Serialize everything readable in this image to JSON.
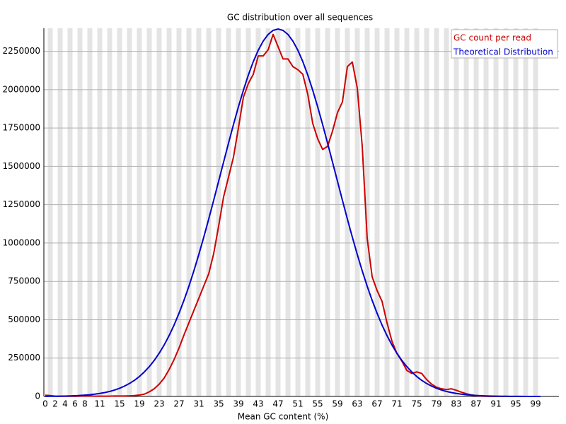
{
  "chart_data": {
    "type": "line",
    "title": "GC distribution over all sequences",
    "x_label": "Mean GC content (%)",
    "categories": [
      "0",
      null,
      "2",
      null,
      "4",
      null,
      "6",
      null,
      "8",
      null,
      null,
      "11",
      null,
      null,
      null,
      "15",
      null,
      null,
      null,
      "19",
      null,
      null,
      null,
      "23",
      null,
      null,
      null,
      "27",
      null,
      null,
      null,
      "31",
      null,
      null,
      null,
      "35",
      null,
      null,
      null,
      "39",
      null,
      null,
      null,
      "43",
      null,
      null,
      null,
      "47",
      null,
      null,
      null,
      "51",
      null,
      null,
      null,
      "55",
      null,
      null,
      null,
      "59",
      null,
      null,
      null,
      "63",
      null,
      null,
      null,
      "67",
      null,
      null,
      null,
      "71",
      null,
      null,
      null,
      "75",
      null,
      null,
      null,
      "79",
      null,
      null,
      null,
      "83",
      null,
      null,
      null,
      "87",
      null,
      null,
      null,
      "91",
      null,
      null,
      null,
      "95",
      null,
      null,
      null,
      "99",
      null
    ],
    "series": [
      {
        "name": "GC count per read",
        "color": "#cc0000",
        "values": [
          8000,
          6000,
          2000,
          1000,
          1000,
          1000,
          1000,
          2000,
          3000,
          3000,
          2000,
          2000,
          2000,
          2000,
          3000,
          3000,
          3000,
          4000,
          6000,
          9000,
          15000,
          30000,
          50000,
          80000,
          120000,
          175000,
          240000,
          315000,
          400000,
          480000,
          560000,
          640000,
          720000,
          800000,
          930000,
          1110000,
          1300000,
          1430000,
          1560000,
          1750000,
          1950000,
          2040000,
          2100000,
          2220000,
          2220000,
          2260000,
          2360000,
          2280000,
          2200000,
          2200000,
          2150000,
          2130000,
          2100000,
          1970000,
          1780000,
          1680000,
          1610000,
          1630000,
          1730000,
          1850000,
          1920000,
          2150000,
          2180000,
          2010000,
          1630000,
          1030000,
          780000,
          690000,
          620000,
          480000,
          360000,
          280000,
          230000,
          170000,
          150000,
          160000,
          150000,
          110000,
          80000,
          60000,
          50000,
          45000,
          50000,
          40000,
          28000,
          18000,
          10000,
          5000,
          2000,
          1000,
          0,
          0,
          0,
          0,
          0,
          0,
          0,
          0,
          0,
          0,
          0
        ]
      },
      {
        "name": "Theoretical Distribution",
        "color": "#0000cc",
        "values": [
          650,
          920,
          1290,
          1800,
          2480,
          3400,
          4640,
          6270,
          8410,
          11200,
          14800,
          19400,
          25300,
          32600,
          41900,
          53300,
          67400,
          84500,
          105200,
          130000,
          159600,
          194300,
          234700,
          281700,
          335300,
          396400,
          465100,
          541700,
          626300,
          718500,
          818400,
          925200,
          1038000,
          1156300,
          1278200,
          1402800,
          1527000,
          1651600,
          1772500,
          1888200,
          1996200,
          2095100,
          2182600,
          2256800,
          2316200,
          2359800,
          2386100,
          2395000,
          2386100,
          2359800,
          2316200,
          2256800,
          2182600,
          2095100,
          1996200,
          1888200,
          1772500,
          1651600,
          1527000,
          1402800,
          1278200,
          1156300,
          1038000,
          925200,
          818400,
          718500,
          626300,
          541700,
          465100,
          396400,
          335300,
          281700,
          234700,
          194300,
          159600,
          130000,
          105200,
          84500,
          67400,
          53300,
          41900,
          32600,
          25300,
          19400,
          14800,
          11200,
          8410,
          6270,
          4640,
          3400,
          2480,
          1800,
          1290,
          920,
          650,
          460,
          320,
          220,
          150,
          100,
          70
        ]
      }
    ],
    "ylim": [
      0,
      2400000
    ],
    "yticks": [
      0,
      250000,
      500000,
      750000,
      1000000,
      1250000,
      1500000,
      1750000,
      2000000,
      2250000
    ],
    "grid": true,
    "legend": "top-right"
  }
}
